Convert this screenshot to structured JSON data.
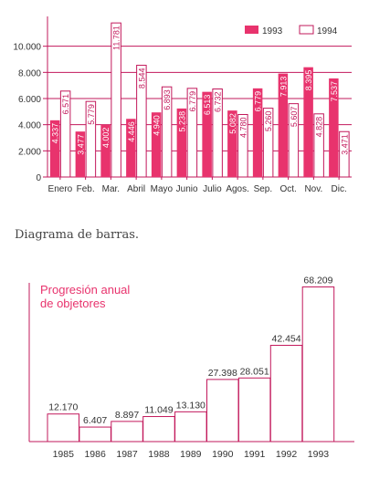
{
  "caption": "Diagrama de barras.",
  "colors": {
    "accent": "#e8336d",
    "axis": "#c2185b",
    "white": "#ffffff"
  },
  "chart_data": [
    {
      "type": "bar",
      "categories": [
        "Enero",
        "Feb.",
        "Mar.",
        "Abril",
        "Mayo",
        "Junio",
        "Julio",
        "Agos.",
        "Sep.",
        "Oct.",
        "Nov.",
        "Dic."
      ],
      "series": [
        {
          "name": "1993",
          "values": [
            4337,
            3477,
            4002,
            4446,
            4940,
            5238,
            6513,
            5082,
            6779,
            7913,
            8395,
            7537
          ],
          "labels": [
            "4.337",
            "3.477",
            "4.002",
            "4.446",
            "4.940",
            "5.238",
            "6.513",
            "5.082",
            "6.779",
            "7.913",
            "8.395",
            "7.537"
          ]
        },
        {
          "name": "1994",
          "values": [
            6571,
            5779,
            11781,
            8544,
            6893,
            6779,
            6732,
            4780,
            5260,
            5607,
            4828,
            3471
          ],
          "labels": [
            "6.571",
            "5.779",
            "11.781",
            "8.544",
            "6.893",
            "6.779",
            "6.732",
            "4.780",
            "5.260",
            "5.607",
            "4.828",
            "3.471"
          ]
        }
      ],
      "yticks": [
        "0",
        "2.000",
        "4.000",
        "6.000",
        "8.000",
        "10.000"
      ],
      "ylim": [
        0,
        12000
      ],
      "legend": "top-right",
      "grid": true
    },
    {
      "type": "bar",
      "title_lines": [
        "Progresión anual",
        "de objetores"
      ],
      "categories": [
        "1985",
        "1986",
        "1987",
        "1988",
        "1989",
        "1990",
        "1991",
        "1992",
        "1993"
      ],
      "values": [
        12170,
        6407,
        8897,
        11049,
        13130,
        27398,
        28051,
        42454,
        68209
      ],
      "labels": [
        "12.170",
        "6.407",
        "8.897",
        "11.049",
        "13.130",
        "27.398",
        "28.051",
        "42.454",
        "68.209"
      ],
      "ylim": [
        0,
        70000
      ]
    }
  ]
}
